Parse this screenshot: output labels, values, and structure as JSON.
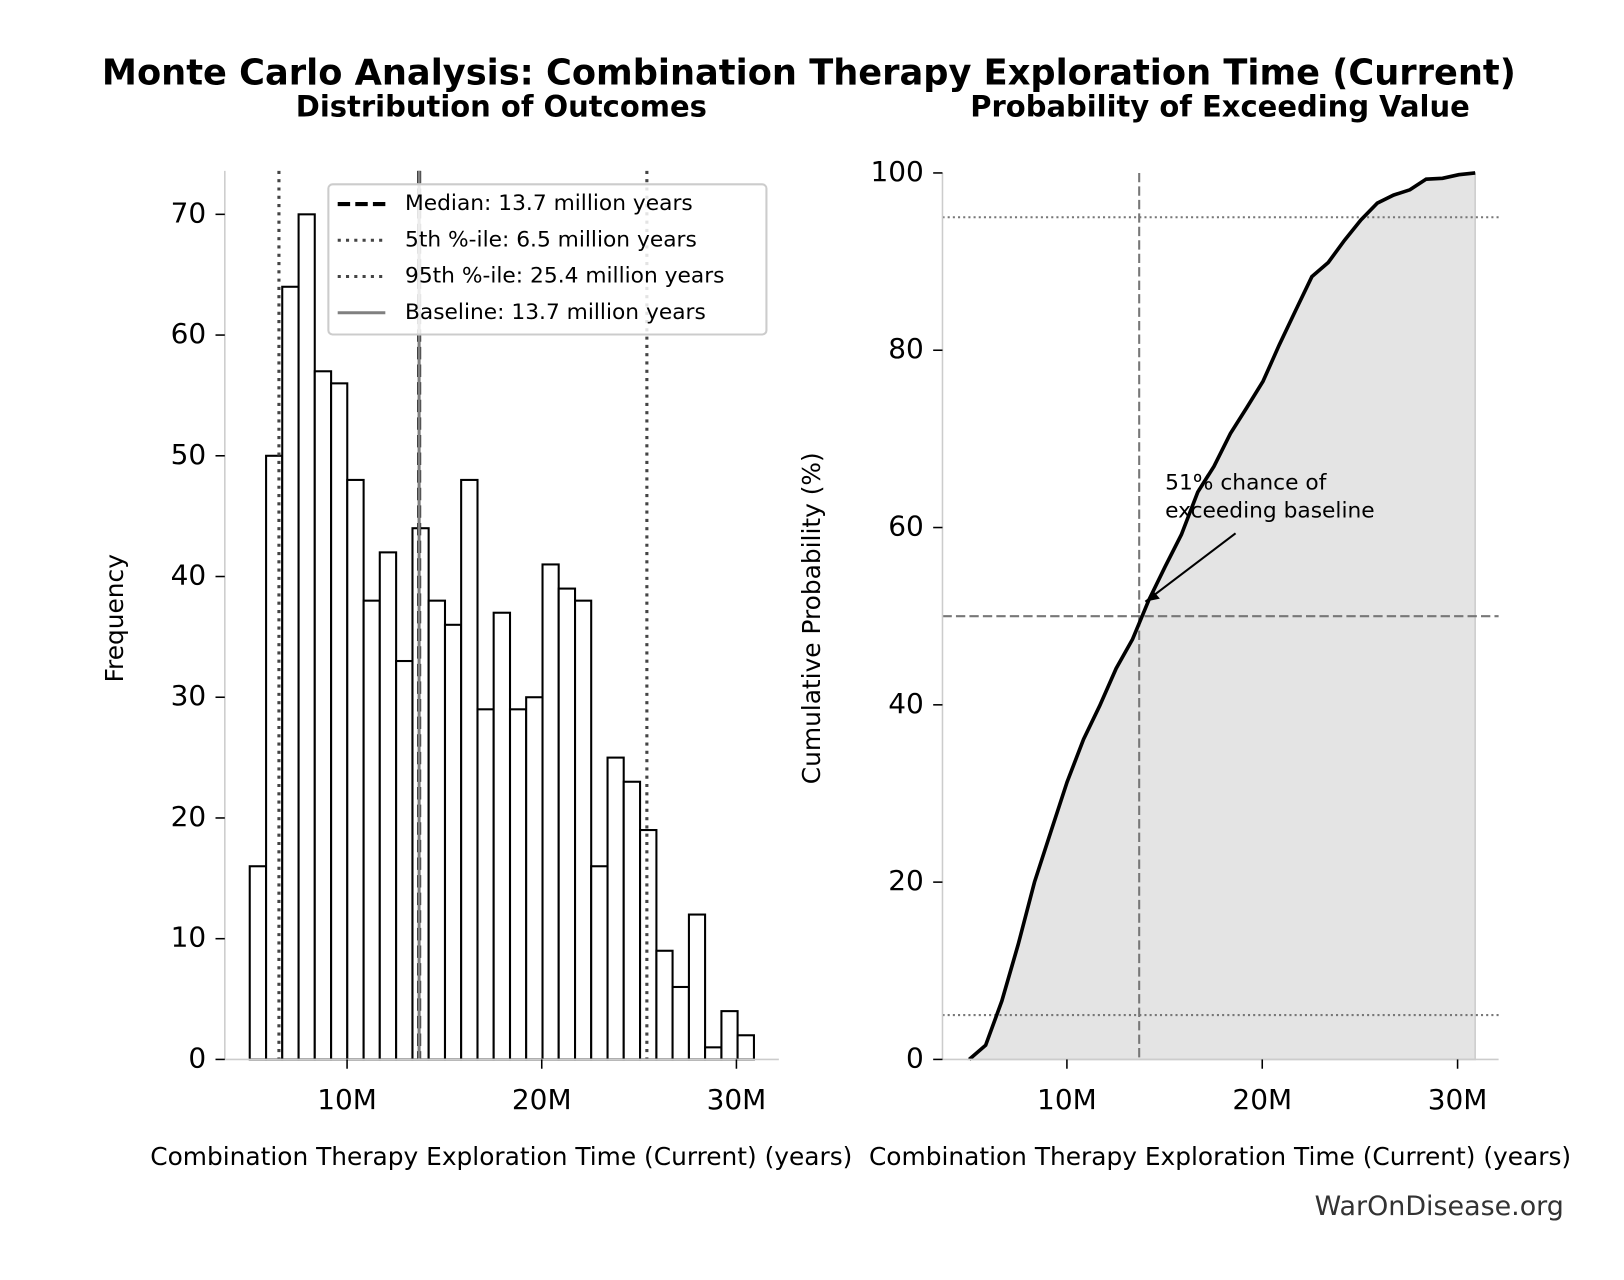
{
  "title": "Monte Carlo Analysis: Combination Therapy Exploration Time (Current)",
  "footer": "WarOnDisease.org",
  "chart_data": [
    {
      "type": "histogram",
      "title": "Distribution of Outcomes",
      "x_label": "Combination Therapy Exploration Time (Current) (years)",
      "y_label": "Frequency",
      "bins": [
        5000000,
        5840000,
        6670000,
        7510000,
        8340000,
        9180000,
        10010000,
        10850000,
        11680000,
        12520000,
        13360000,
        14190000,
        15030000,
        15860000,
        16700000,
        17530000,
        18370000,
        19200000,
        20040000,
        20870000,
        21710000,
        22540000,
        23380000,
        24210000,
        25050000,
        25890000,
        26720000,
        27560000,
        28390000,
        29230000,
        30060000,
        30900000
      ],
      "values": [
        16,
        50,
        64,
        70,
        57,
        56,
        48,
        38,
        42,
        33,
        44,
        38,
        36,
        48,
        29,
        37,
        29,
        30,
        41,
        39,
        38,
        16,
        25,
        23,
        19,
        9,
        6,
        12,
        1,
        4,
        2
      ],
      "color": "#ffffff",
      "edge_color": "#000000",
      "xlim": [
        3720000,
        32180000
      ],
      "xticks": [
        {
          "value": 10000000,
          "label": "10M"
        },
        {
          "value": 20000000,
          "label": "20M"
        },
        {
          "value": 30000000,
          "label": "30M"
        }
      ],
      "ylim": [
        0,
        73.6
      ],
      "yticks": [
        0,
        10,
        20,
        30,
        40,
        50,
        60,
        70
      ],
      "vlines": [
        {
          "label": "Median: 13.7 million years",
          "value": 13700000,
          "style": "dashed",
          "color": "#000000"
        },
        {
          "label": "5th %-ile: 6.5 million years",
          "value": 6500000,
          "style": "dotted",
          "color": "#444444"
        },
        {
          "label": "95th %-ile: 25.4 million years",
          "value": 25400000,
          "style": "dotted",
          "color": "#444444"
        },
        {
          "label": "Baseline: 13.7 million years",
          "value": 13700000,
          "style": "solid",
          "color": "#808080"
        }
      ],
      "legend": "upper right"
    },
    {
      "type": "line",
      "title": "Probability of Exceeding Value",
      "x_label": "Combination Therapy Exploration Time (Current) (years)",
      "y_label": "Cumulative Probability (%)",
      "x": [
        5000000,
        5840000,
        6670000,
        7510000,
        8340000,
        9180000,
        10010000,
        10850000,
        11680000,
        12520000,
        13360000,
        14190000,
        15030000,
        15860000,
        16700000,
        17530000,
        18370000,
        19200000,
        20040000,
        20870000,
        21710000,
        22540000,
        23380000,
        24210000,
        25050000,
        25890000,
        26720000,
        27560000,
        28390000,
        29230000,
        30060000,
        30900000
      ],
      "values": [
        0,
        1.6,
        6.6,
        13.0,
        20.0,
        25.7,
        31.3,
        36.1,
        39.9,
        44.1,
        47.4,
        51.8,
        55.6,
        59.2,
        64.0,
        66.9,
        70.6,
        73.5,
        76.5,
        80.6,
        84.5,
        88.3,
        89.9,
        92.4,
        94.7,
        96.6,
        97.5,
        98.1,
        99.3,
        99.4,
        99.8,
        100
      ],
      "color": "#000000",
      "fill_color": "#e4e4e4",
      "xlim": [
        3630000,
        32100000
      ],
      "xticks": [
        {
          "value": 10000000,
          "label": "10M"
        },
        {
          "value": 20000000,
          "label": "20M"
        },
        {
          "value": 30000000,
          "label": "30M"
        }
      ],
      "ylim": [
        0,
        100
      ],
      "yticks": [
        0,
        20,
        40,
        60,
        80,
        100
      ],
      "baseline": 13700000,
      "hlines": [
        5,
        50,
        95
      ],
      "annotation": [
        "51% chance of",
        "exceeding baseline"
      ]
    }
  ]
}
